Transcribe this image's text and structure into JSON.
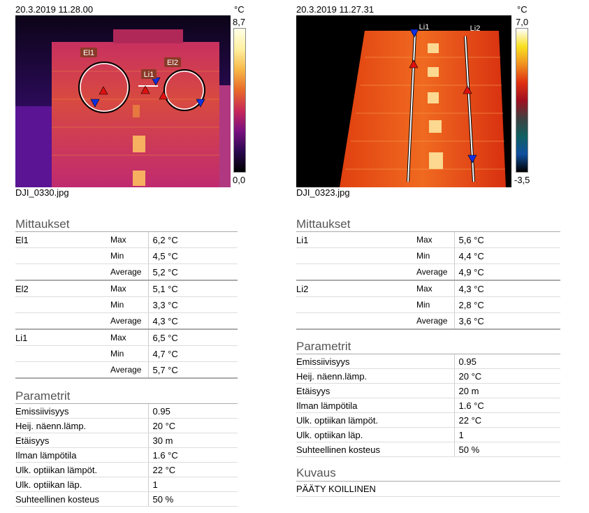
{
  "left": {
    "timestamp": "20.3.2019 11.28.00",
    "unit": "°C",
    "scale_max": "8,7",
    "scale_min": "0,0",
    "filename": "DJI_0330.jpg",
    "markers": {
      "el1": "El1",
      "el2": "El2",
      "li1": "Li1"
    },
    "measurements_title": "Mittaukset",
    "measurements": [
      {
        "name": "El1",
        "rows": [
          {
            "k": "Max",
            "v": "6,2 °C"
          },
          {
            "k": "Min",
            "v": "4,5 °C"
          },
          {
            "k": "Average",
            "v": "5,2 °C"
          }
        ]
      },
      {
        "name": "El2",
        "rows": [
          {
            "k": "Max",
            "v": "5,1 °C"
          },
          {
            "k": "Min",
            "v": "3,3 °C"
          },
          {
            "k": "Average",
            "v": "4,3 °C"
          }
        ]
      },
      {
        "name": "Li1",
        "rows": [
          {
            "k": "Max",
            "v": "6,5 °C"
          },
          {
            "k": "Min",
            "v": "4,7 °C"
          },
          {
            "k": "Average",
            "v": "5,7 °C"
          }
        ]
      }
    ],
    "params_title": "Parametrit",
    "params": [
      {
        "k": "Emissiivisyys",
        "v": "0.95"
      },
      {
        "k": "Heij. näenn.lämp.",
        "v": "20 °C"
      },
      {
        "k": "Etäisyys",
        "v": "30 m"
      },
      {
        "k": "Ilman lämpötila",
        "v": "1.6 °C"
      },
      {
        "k": "Ulk. optiikan lämpöt.",
        "v": "22 °C"
      },
      {
        "k": "Ulk. optiikan läp.",
        "v": "1"
      },
      {
        "k": "Suhteellinen kosteus",
        "v": "50 %"
      }
    ]
  },
  "right": {
    "timestamp": "20.3.2019 11.27.31",
    "unit": "°C",
    "scale_max": "7,0",
    "scale_min": "-3,5",
    "filename": "DJI_0323.jpg",
    "markers": {
      "li1": "Li1",
      "li2": "Li2"
    },
    "measurements_title": "Mittaukset",
    "measurements": [
      {
        "name": "Li1",
        "rows": [
          {
            "k": "Max",
            "v": "5,6 °C"
          },
          {
            "k": "Min",
            "v": "4,4 °C"
          },
          {
            "k": "Average",
            "v": "4,9 °C"
          }
        ]
      },
      {
        "name": "Li2",
        "rows": [
          {
            "k": "Max",
            "v": "4,3 °C"
          },
          {
            "k": "Min",
            "v": "2,8 °C"
          },
          {
            "k": "Average",
            "v": "3,6 °C"
          }
        ]
      }
    ],
    "params_title": "Parametrit",
    "params": [
      {
        "k": "Emissiivisyys",
        "v": "0.95"
      },
      {
        "k": "Heij. näenn.lämp.",
        "v": "20 °C"
      },
      {
        "k": "Etäisyys",
        "v": "20 m"
      },
      {
        "k": "Ilman lämpötila",
        "v": "1.6 °C"
      },
      {
        "k": "Ulk. optiikan lämpöt.",
        "v": "22 °C"
      },
      {
        "k": "Ulk. optiikan läp.",
        "v": "1"
      },
      {
        "k": "Suhteellinen kosteus",
        "v": "50 %"
      }
    ],
    "description_title": "Kuvaus",
    "description": "PÄÄTY KOILLINEN"
  }
}
